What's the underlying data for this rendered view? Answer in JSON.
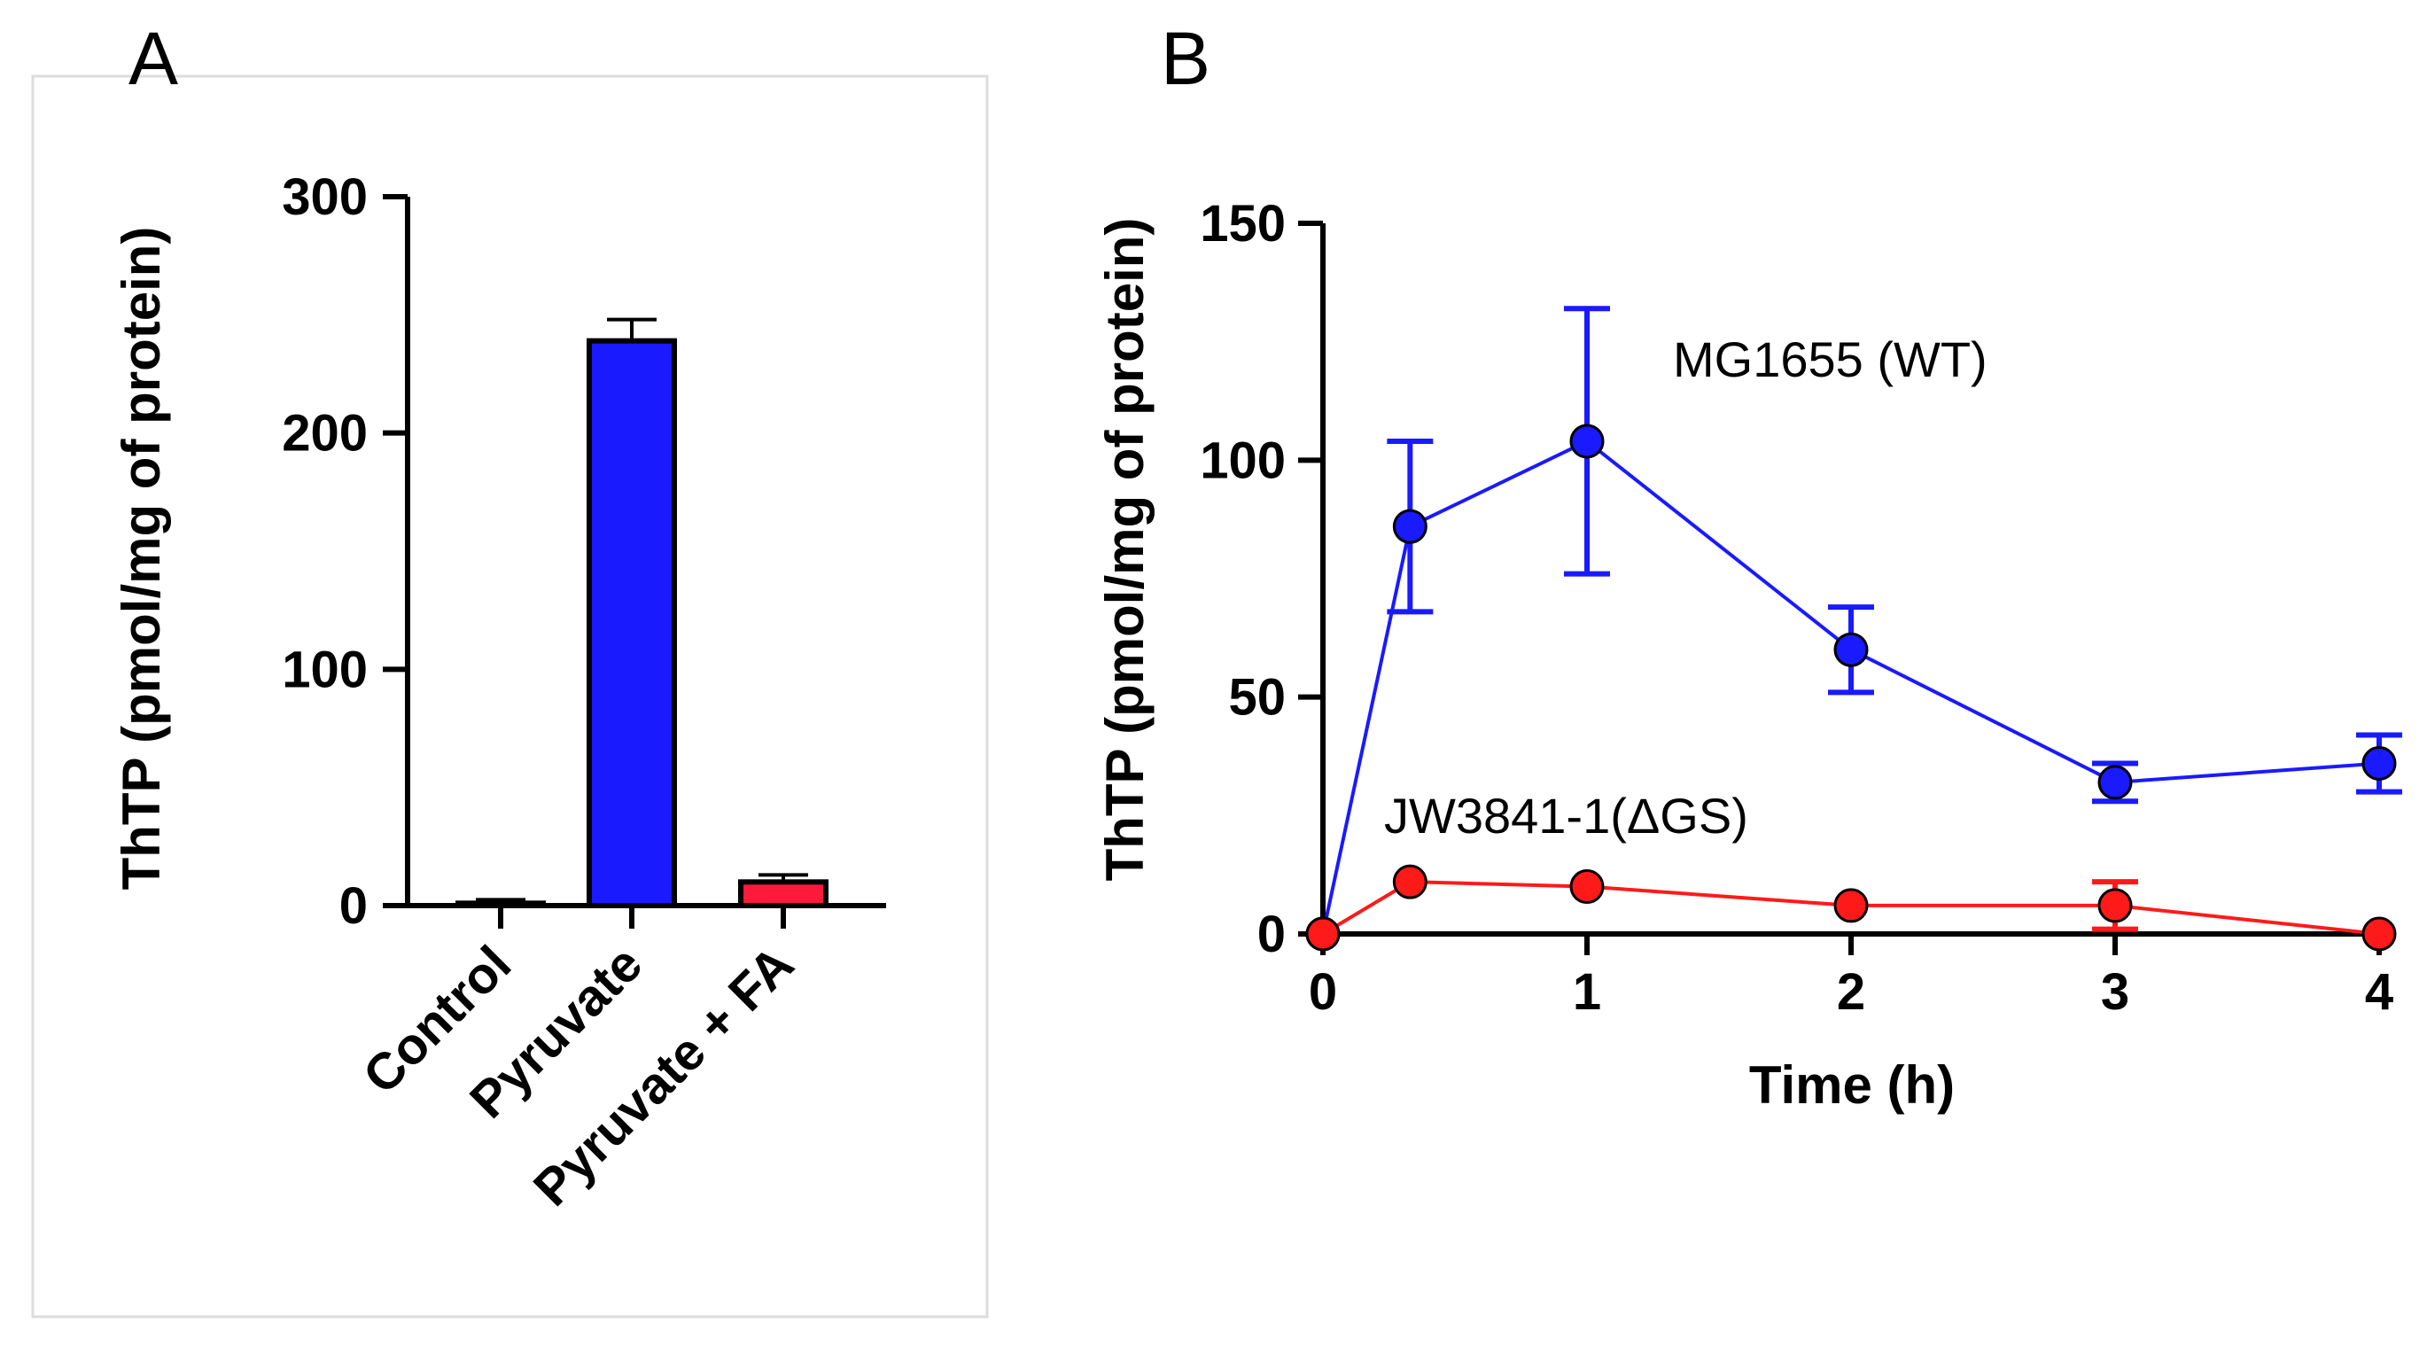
{
  "chart_data": [
    {
      "panel_label": "A",
      "type": "bar",
      "title": "",
      "xlabel": "",
      "ylabel": "ThTP (pmol/mg of protein)",
      "ylim": [
        0,
        300
      ],
      "yticks": [
        0,
        100,
        200,
        300
      ],
      "categories": [
        "Control",
        "Pyruvate",
        "Pyruvate + FA"
      ],
      "values": [
        1,
        239,
        10
      ],
      "errors": [
        1.5,
        9,
        3
      ],
      "bar_colors": [
        "#000000",
        "#1a1aff",
        "#ff1a3c"
      ],
      "grid": false
    },
    {
      "panel_label": "B",
      "type": "line",
      "title": "",
      "xlabel": "Time (h)",
      "ylabel": "ThTP (pmol/mg of protein)",
      "xlim": [
        0,
        4
      ],
      "ylim": [
        0,
        150
      ],
      "xticks": [
        0,
        1,
        2,
        3,
        4
      ],
      "yticks": [
        0,
        50,
        100,
        150
      ],
      "grid": false,
      "series": [
        {
          "name": "MG1655 (WT)",
          "color": "#1a1aff",
          "x": [
            0,
            0.33,
            1,
            2,
            3,
            4
          ],
          "y": [
            0,
            86,
            104,
            60,
            32,
            36
          ],
          "err": [
            0,
            18,
            28,
            9,
            4,
            6
          ]
        },
        {
          "name": "JW3841-1(ΔGS)",
          "color": "#ff1a1a",
          "x": [
            0,
            0.33,
            1,
            2,
            3,
            4
          ],
          "y": [
            0,
            11,
            10,
            6,
            6,
            0
          ],
          "err": [
            0,
            0,
            0,
            0,
            5,
            0
          ]
        }
      ]
    }
  ]
}
